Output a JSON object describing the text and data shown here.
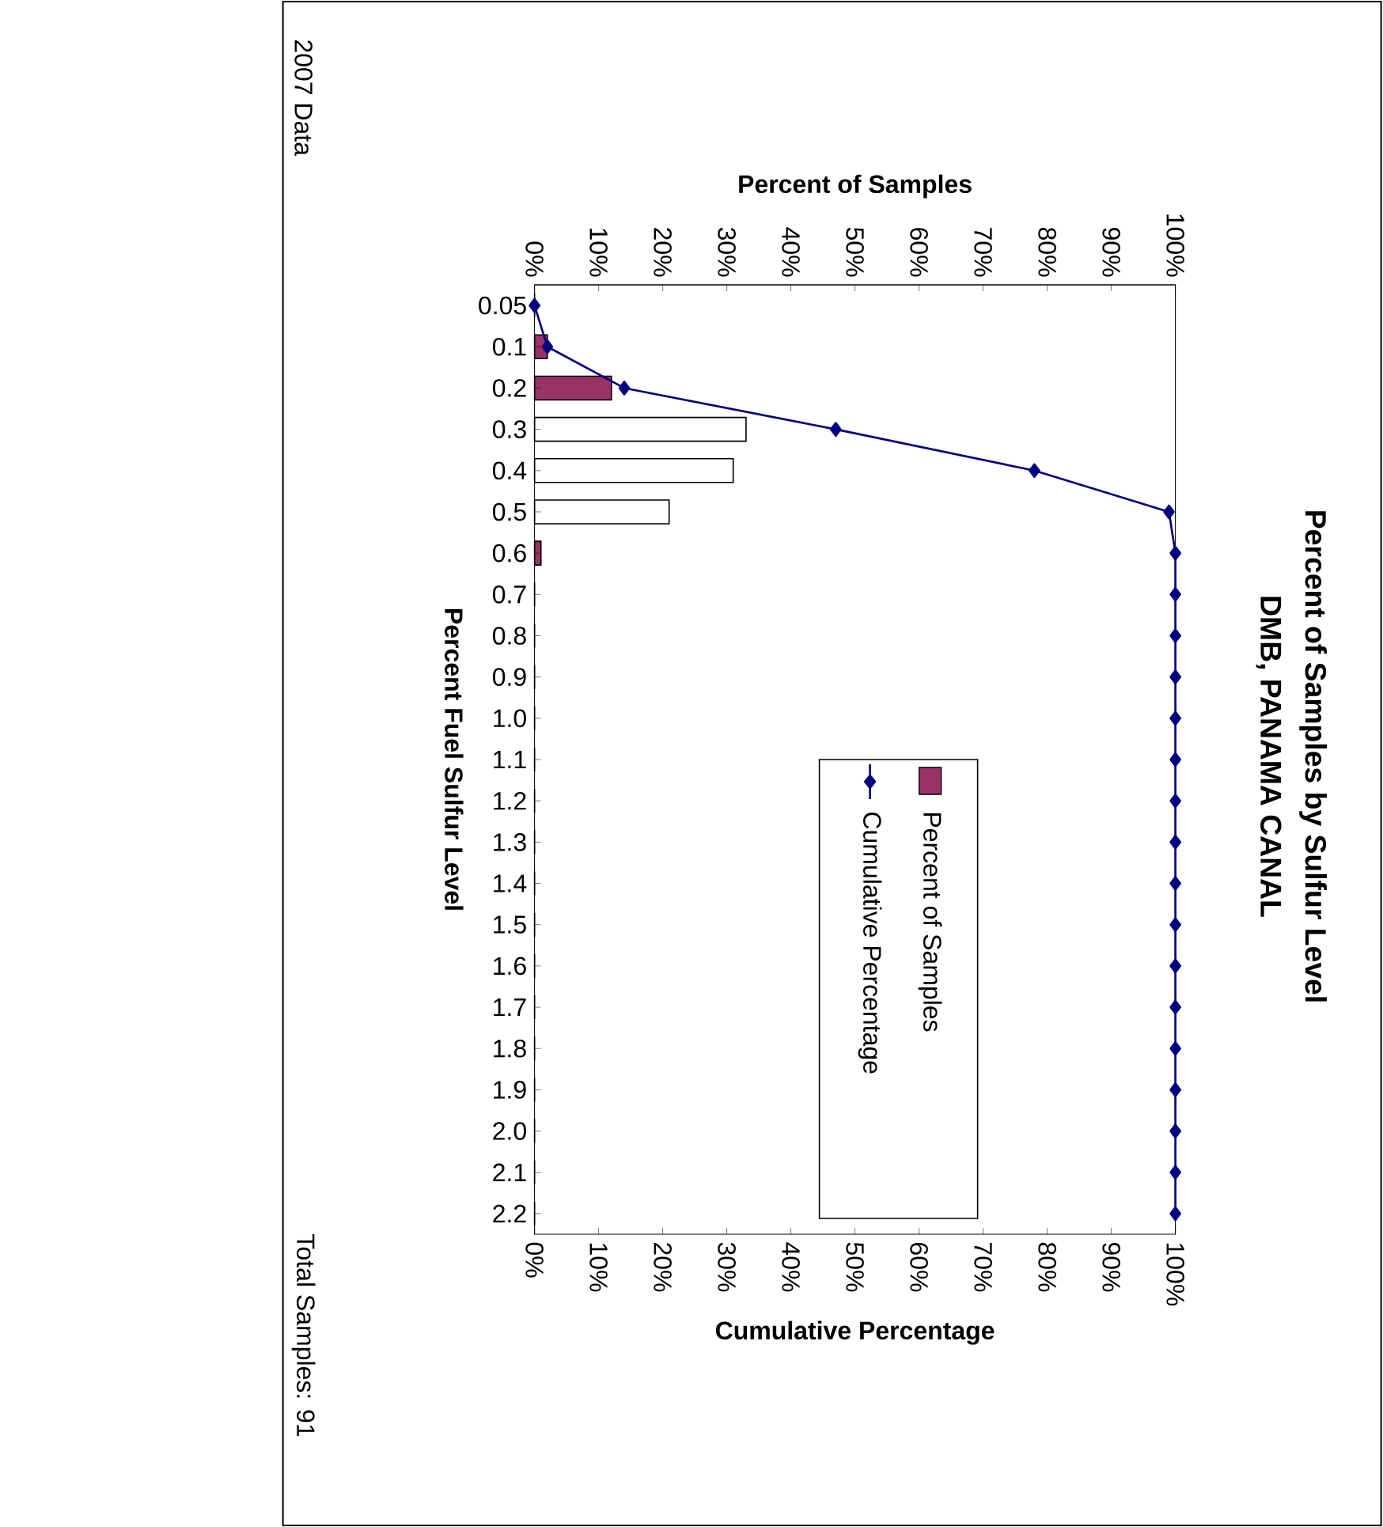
{
  "chart_data": {
    "type": "bar",
    "orientation": "horizontal",
    "title": "Percent of Samples by Sulfur Level",
    "subtitle": "DMB, PANAMA CANAL",
    "ylabel": "Percent Fuel Sulfur Level",
    "x2label": "Percent of Samples",
    "xlabel": "Cumulative Percentage",
    "annotations": [
      "2007 Data",
      "Total Samples: 91"
    ],
    "categories": [
      "0.05",
      "0.1",
      "0.2",
      "0.3",
      "0.4",
      "0.5",
      "0.6",
      "0.7",
      "0.8",
      "0.9",
      "1.0",
      "1.1",
      "1.2",
      "1.3",
      "1.4",
      "1.5",
      "1.6",
      "1.7",
      "1.8",
      "1.9",
      "2.0",
      "2.1",
      "2.2"
    ],
    "series": [
      {
        "name": "Percent of Samples",
        "axis": "x2",
        "color": "#993366",
        "colors": [
          "#993366",
          "#993366",
          "#993366",
          "#ffffff",
          "#ffffff",
          "#ffffff",
          "#993366",
          "#993366",
          "#993366",
          "#993366",
          "#993366",
          "#993366",
          "#993366",
          "#993366",
          "#993366",
          "#993366",
          "#993366",
          "#993366",
          "#993366",
          "#993366",
          "#993366",
          "#993366",
          "#993366"
        ],
        "values": [
          0,
          2,
          12,
          33,
          31,
          21,
          1,
          0,
          0,
          0,
          0,
          0,
          0,
          0,
          0,
          0,
          0,
          0,
          0,
          0,
          0,
          0,
          0
        ]
      },
      {
        "name": "Cumulative Percentage",
        "type": "line",
        "color": "#000080",
        "values": [
          0,
          2,
          14,
          47,
          78,
          99,
          100,
          100,
          100,
          100,
          100,
          100,
          100,
          100,
          100,
          100,
          100,
          100,
          100,
          100,
          100,
          100,
          100
        ]
      }
    ],
    "x2lim": [
      0,
      100
    ],
    "x2ticks": [
      {
        "value": 0,
        "label": "0%"
      },
      {
        "value": 10,
        "label": "10%"
      },
      {
        "value": 20,
        "label": "20%"
      },
      {
        "value": 30,
        "label": "30%"
      },
      {
        "value": 40,
        "label": "40%"
      },
      {
        "value": 50,
        "label": "50%"
      },
      {
        "value": 60,
        "label": "60%"
      },
      {
        "value": 70,
        "label": "70%"
      },
      {
        "value": 80,
        "label": "80%"
      },
      {
        "value": 90,
        "label": "90%"
      },
      {
        "value": 100,
        "label": "100%"
      }
    ],
    "xlim": [
      0,
      100
    ],
    "xticks": [
      {
        "value": 0,
        "label": "0%"
      },
      {
        "value": 10,
        "label": "10%"
      },
      {
        "value": 20,
        "label": "20%"
      },
      {
        "value": 30,
        "label": "30%"
      },
      {
        "value": 40,
        "label": "40%"
      },
      {
        "value": 50,
        "label": "50%"
      },
      {
        "value": 60,
        "label": "60%"
      },
      {
        "value": 70,
        "label": "70%"
      },
      {
        "value": 80,
        "label": "80%"
      },
      {
        "value": 90,
        "label": "90%"
      },
      {
        "value": 100,
        "label": "100%"
      }
    ],
    "marker": "diamond",
    "line_style": "solid",
    "legend": "right",
    "grid": false
  }
}
